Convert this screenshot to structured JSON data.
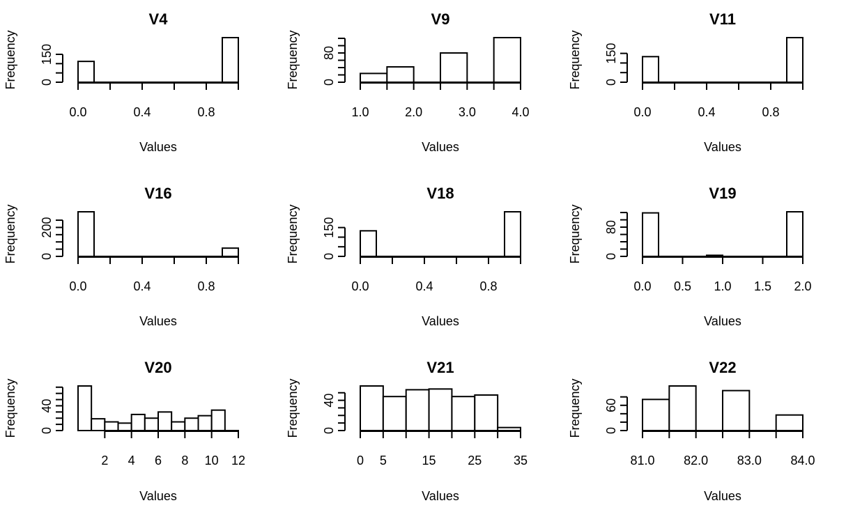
{
  "chart_data": [
    {
      "type": "bar",
      "title": "V4",
      "xlabel": "Values",
      "ylabel": "Frequency",
      "bins": [
        [
          0.0,
          0.1
        ],
        [
          0.1,
          0.2
        ],
        [
          0.2,
          0.3
        ],
        [
          0.3,
          0.4
        ],
        [
          0.4,
          0.5
        ],
        [
          0.5,
          0.6
        ],
        [
          0.6,
          0.7
        ],
        [
          0.7,
          0.8
        ],
        [
          0.8,
          0.9
        ],
        [
          0.9,
          1.0
        ]
      ],
      "values": [
        112,
        0,
        0,
        0,
        0,
        0,
        0,
        0,
        0,
        240
      ],
      "xlim": [
        0.0,
        1.0
      ],
      "xticks": [
        0.0,
        0.2,
        0.4,
        0.6,
        0.8,
        1.0
      ],
      "xtick_labels": [
        "0.0",
        "",
        "0.4",
        "",
        "0.8",
        ""
      ],
      "ylim": [
        0,
        240
      ],
      "yticks": [
        0,
        50,
        100,
        150
      ],
      "ytick_labels": [
        "0",
        "",
        "",
        "150"
      ]
    },
    {
      "type": "bar",
      "title": "V9",
      "xlabel": "Values",
      "ylabel": "Frequency",
      "bins": [
        [
          1.0,
          1.5
        ],
        [
          1.5,
          2.0
        ],
        [
          2.0,
          2.5
        ],
        [
          2.5,
          3.0
        ],
        [
          3.0,
          3.5
        ],
        [
          3.5,
          4.0
        ]
      ],
      "values": [
        24,
        42,
        0,
        80,
        0,
        122
      ],
      "xlim": [
        1.0,
        4.0
      ],
      "xticks": [
        1.0,
        1.5,
        2.0,
        2.5,
        3.0,
        3.5,
        4.0
      ],
      "xtick_labels": [
        "1.0",
        "",
        "2.0",
        "",
        "3.0",
        "",
        "4.0"
      ],
      "ylim": [
        0,
        122
      ],
      "yticks": [
        0,
        20,
        40,
        60,
        80,
        100,
        120
      ],
      "ytick_labels": [
        "0",
        "",
        "",
        "",
        "80",
        "",
        ""
      ]
    },
    {
      "type": "bar",
      "title": "V11",
      "xlabel": "Values",
      "ylabel": "Frequency",
      "bins": [
        [
          0.0,
          0.1
        ],
        [
          0.1,
          0.2
        ],
        [
          0.2,
          0.3
        ],
        [
          0.3,
          0.4
        ],
        [
          0.4,
          0.5
        ],
        [
          0.5,
          0.6
        ],
        [
          0.6,
          0.7
        ],
        [
          0.7,
          0.8
        ],
        [
          0.8,
          0.9
        ],
        [
          0.9,
          1.0
        ]
      ],
      "values": [
        133,
        0,
        0,
        0,
        0,
        0,
        0,
        0,
        0,
        232
      ],
      "xlim": [
        0.0,
        1.0
      ],
      "xticks": [
        0.0,
        0.2,
        0.4,
        0.6,
        0.8,
        1.0
      ],
      "xtick_labels": [
        "0.0",
        "",
        "0.4",
        "",
        "0.8",
        ""
      ],
      "ylim": [
        0,
        232
      ],
      "yticks": [
        0,
        50,
        100,
        150
      ],
      "ytick_labels": [
        "0",
        "",
        "",
        "150"
      ]
    },
    {
      "type": "bar",
      "title": "V16",
      "xlabel": "Values",
      "ylabel": "Frequency",
      "bins": [
        [
          0.0,
          0.1
        ],
        [
          0.1,
          0.2
        ],
        [
          0.2,
          0.3
        ],
        [
          0.3,
          0.4
        ],
        [
          0.4,
          0.5
        ],
        [
          0.5,
          0.6
        ],
        [
          0.6,
          0.7
        ],
        [
          0.7,
          0.8
        ],
        [
          0.8,
          0.9
        ],
        [
          0.9,
          1.0
        ]
      ],
      "values": [
        308,
        0,
        0,
        0,
        0,
        0,
        0,
        0,
        0,
        57
      ],
      "xlim": [
        0.0,
        1.0
      ],
      "xticks": [
        0.0,
        0.2,
        0.4,
        0.6,
        0.8,
        1.0
      ],
      "xtick_labels": [
        "0.0",
        "",
        "0.4",
        "",
        "0.8",
        ""
      ],
      "ylim": [
        0,
        308
      ],
      "yticks": [
        0,
        50,
        100,
        150,
        200,
        250
      ],
      "ytick_labels": [
        "0",
        "",
        "",
        "",
        "200",
        ""
      ]
    },
    {
      "type": "bar",
      "title": "V18",
      "xlabel": "Values",
      "ylabel": "Frequency",
      "bins": [
        [
          0.0,
          0.1
        ],
        [
          0.1,
          0.2
        ],
        [
          0.2,
          0.3
        ],
        [
          0.3,
          0.4
        ],
        [
          0.4,
          0.5
        ],
        [
          0.5,
          0.6
        ],
        [
          0.6,
          0.7
        ],
        [
          0.7,
          0.8
        ],
        [
          0.8,
          0.9
        ],
        [
          0.9,
          1.0
        ]
      ],
      "values": [
        133,
        0,
        0,
        0,
        0,
        0,
        0,
        0,
        0,
        232
      ],
      "xlim": [
        0.0,
        1.0
      ],
      "xticks": [
        0.0,
        0.2,
        0.4,
        0.6,
        0.8,
        1.0
      ],
      "xtick_labels": [
        "0.0",
        "",
        "0.4",
        "",
        "0.8",
        ""
      ],
      "ylim": [
        0,
        232
      ],
      "yticks": [
        0,
        50,
        100,
        150
      ],
      "ytick_labels": [
        "0",
        "",
        "",
        "150"
      ]
    },
    {
      "type": "bar",
      "title": "V19",
      "xlabel": "Values",
      "ylabel": "Frequency",
      "bins": [
        [
          0.0,
          0.2
        ],
        [
          0.2,
          0.4
        ],
        [
          0.4,
          0.6
        ],
        [
          0.6,
          0.8
        ],
        [
          0.8,
          1.0
        ],
        [
          1.0,
          1.2
        ],
        [
          1.2,
          1.4
        ],
        [
          1.4,
          1.6
        ],
        [
          1.6,
          1.8
        ],
        [
          1.8,
          2.0
        ]
      ],
      "values": [
        119,
        0,
        0,
        0,
        3,
        0,
        0,
        0,
        0,
        122
      ],
      "xlim": [
        0.0,
        2.0
      ],
      "xticks": [
        0.0,
        0.5,
        1.0,
        1.5,
        2.0
      ],
      "xtick_labels": [
        "0.0",
        "0.5",
        "1.0",
        "1.5",
        "2.0"
      ],
      "ylim": [
        0,
        122
      ],
      "yticks": [
        0,
        20,
        40,
        60,
        80,
        100,
        120
      ],
      "ytick_labels": [
        "0",
        "",
        "",
        "",
        "80",
        "",
        ""
      ]
    },
    {
      "type": "bar",
      "title": "V20",
      "xlabel": "Values",
      "ylabel": "Frequency",
      "bins": [
        [
          0,
          1
        ],
        [
          1,
          2
        ],
        [
          2,
          3
        ],
        [
          3,
          4
        ],
        [
          4,
          5
        ],
        [
          5,
          6
        ],
        [
          6,
          7
        ],
        [
          7,
          8
        ],
        [
          8,
          9
        ],
        [
          9,
          10
        ],
        [
          10,
          11
        ],
        [
          11,
          12
        ]
      ],
      "values": [
        72,
        19,
        14,
        12,
        26,
        20,
        30,
        14,
        20,
        24,
        33,
        0
      ],
      "xlim": [
        0,
        12
      ],
      "xticks": [
        2,
        4,
        6,
        8,
        10,
        12
      ],
      "xtick_labels": [
        "2",
        "4",
        "6",
        "8",
        "10",
        "12"
      ],
      "ylim": [
        0,
        72
      ],
      "yticks": [
        0,
        10,
        20,
        30,
        40,
        50,
        60,
        70
      ],
      "ytick_labels": [
        "0",
        "",
        "",
        "",
        "40",
        "",
        "",
        ""
      ]
    },
    {
      "type": "bar",
      "title": "V21",
      "xlabel": "Values",
      "ylabel": "Frequency",
      "bins": [
        [
          0,
          5
        ],
        [
          5,
          10
        ],
        [
          10,
          15
        ],
        [
          15,
          20
        ],
        [
          20,
          25
        ],
        [
          25,
          30
        ],
        [
          30,
          35
        ]
      ],
      "values": [
        59,
        45,
        54,
        55,
        45,
        47,
        4
      ],
      "xlim": [
        0,
        35
      ],
      "xticks": [
        0,
        5,
        10,
        15,
        20,
        25,
        30,
        35
      ],
      "xtick_labels": [
        "0",
        "5",
        "",
        "15",
        "",
        "25",
        "",
        "35"
      ],
      "ylim": [
        0,
        59
      ],
      "yticks": [
        0,
        10,
        20,
        30,
        40,
        50
      ],
      "ytick_labels": [
        "0",
        "",
        "",
        "",
        "40",
        ""
      ]
    },
    {
      "type": "bar",
      "title": "V22",
      "xlabel": "Values",
      "ylabel": "Frequency",
      "bins": [
        [
          81.0,
          81.5
        ],
        [
          81.5,
          82.0
        ],
        [
          82.0,
          82.5
        ],
        [
          82.5,
          83.0
        ],
        [
          83.0,
          83.5
        ],
        [
          83.5,
          84.0
        ]
      ],
      "values": [
        74,
        106,
        0,
        95,
        0,
        37
      ],
      "xlim": [
        81.0,
        84.0
      ],
      "xticks": [
        81.0,
        81.5,
        82.0,
        82.5,
        83.0,
        83.5,
        84.0
      ],
      "xtick_labels": [
        "81.0",
        "",
        "82.0",
        "",
        "83.0",
        "",
        "84.0"
      ],
      "ylim": [
        0,
        106
      ],
      "yticks": [
        0,
        20,
        40,
        60,
        80
      ],
      "ytick_labels": [
        "0",
        "",
        "",
        "60",
        ""
      ]
    }
  ]
}
